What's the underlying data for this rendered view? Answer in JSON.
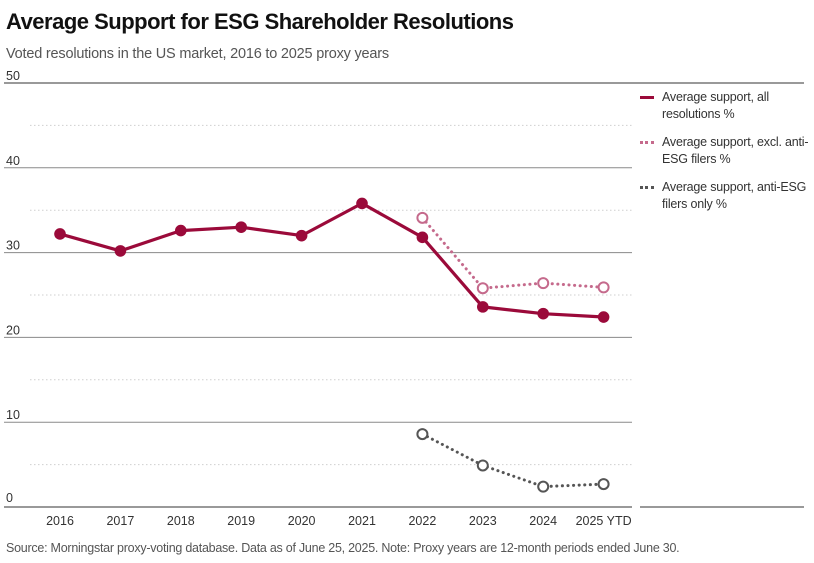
{
  "title": "Average Support for ESG Shareholder Resolutions",
  "subtitle": "Voted resolutions in the US market, 2016 to 2025 proxy years",
  "source": "Source: Morningstar proxy-voting database. Data as of June 25, 2025. Note: Proxy years are 12-month periods ended June 30.",
  "colors": {
    "all": "#9b0a3a",
    "excl": "#c56a8c",
    "anti": "#555555",
    "grid": "#cfcfcf",
    "axis": "#333333"
  },
  "chart_data": {
    "type": "line",
    "categories": [
      "2016",
      "2017",
      "2018",
      "2019",
      "2020",
      "2021",
      "2022",
      "2023",
      "2024",
      "2025 YTD"
    ],
    "ylim": [
      0,
      50
    ],
    "yticks": [
      "0",
      "10",
      "20",
      "30",
      "40",
      "50"
    ],
    "grid": true,
    "legend_position": "right",
    "series": [
      {
        "name": "Average support, all resolutions %",
        "style": "solid-filled",
        "values": [
          32.2,
          30.2,
          32.6,
          33.0,
          32.0,
          35.8,
          31.8,
          23.6,
          22.8,
          22.4
        ]
      },
      {
        "name": "Average support, excl. anti-ESG filers %",
        "style": "dotted-open",
        "values": [
          null,
          null,
          null,
          null,
          null,
          null,
          34.1,
          25.8,
          26.4,
          25.9
        ]
      },
      {
        "name": "Average support, anti-ESG filers only %",
        "style": "dotted-open",
        "values": [
          null,
          null,
          null,
          null,
          null,
          null,
          8.6,
          4.9,
          2.4,
          2.7
        ]
      }
    ]
  }
}
